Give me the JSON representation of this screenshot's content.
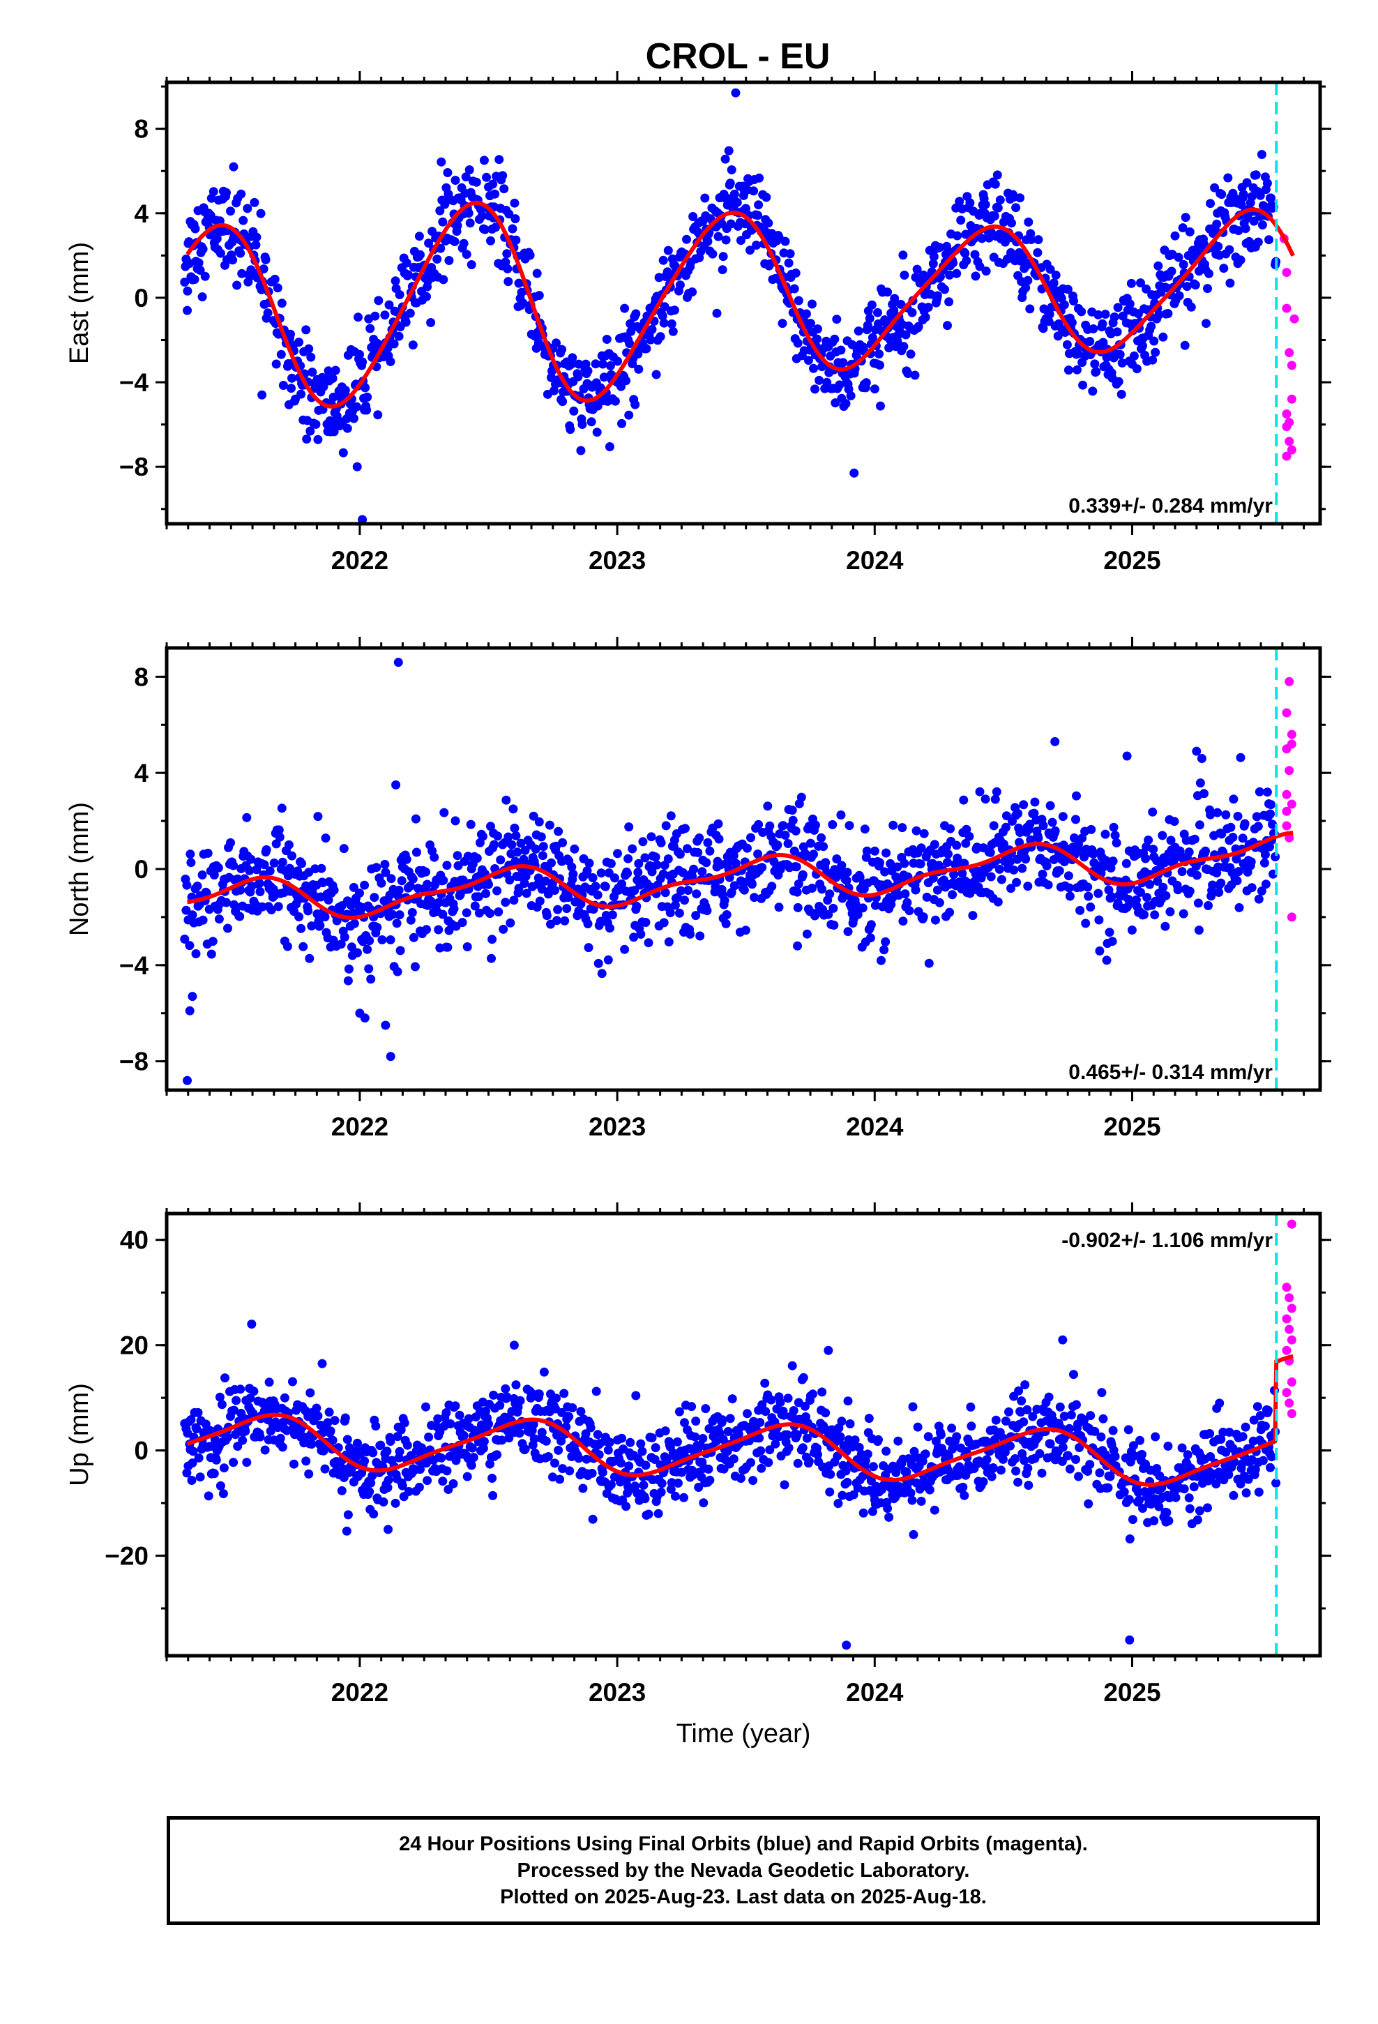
{
  "title": "CROL - EU",
  "footer": {
    "line1": "24 Hour Positions Using Final Orbits (blue) and Rapid Orbits (magenta).",
    "line2": "Processed by the Nevada Geodetic Laboratory.",
    "line3": "Plotted on 2025-Aug-23. Last data on 2025-Aug-18."
  },
  "colors": {
    "final": "#0000ff",
    "rapid": "#ff00ff",
    "fit": "#ff0000",
    "marker": "#00e5ee",
    "frame": "#000000"
  },
  "chart_data": [
    {
      "type": "scatter",
      "component": "east",
      "ylabel": "East (mm)",
      "xlabel": "",
      "xlim": [
        2021.25,
        2025.73
      ],
      "ylim": [
        -10.7,
        10.2
      ],
      "xticks": [
        2022,
        2023,
        2024,
        2025
      ],
      "yticks": [
        -8,
        -4,
        0,
        4,
        8
      ],
      "yticklabels": [
        "−8",
        "−4",
        "0",
        "4",
        "8"
      ],
      "rate_label": "0.339+/- 0.284 mm/yr",
      "rate_position": "bottom-right",
      "rapid_start": 2025.56,
      "fit": {
        "mean": 0,
        "trend": 0.339,
        "amp": 4.0,
        "amp2": 0.5,
        "phase_center": 2021.42,
        "jump": 0,
        "mod": 0.25
      },
      "scatter_sigma": 1.1,
      "outliers": [
        [
          2021.51,
          6.2
        ],
        [
          2021.62,
          -4.6
        ],
        [
          2021.99,
          -8.0
        ],
        [
          2022.01,
          -10.5
        ],
        [
          2023.46,
          9.7
        ],
        [
          2023.92,
          -8.3
        ],
        [
          2021.33,
          -0.6
        ]
      ],
      "rapid": [
        [
          2025.59,
          2.8
        ],
        [
          2025.6,
          1.2
        ],
        [
          2025.6,
          -0.5
        ],
        [
          2025.61,
          -2.6
        ],
        [
          2025.62,
          -3.2
        ],
        [
          2025.6,
          -5.5
        ],
        [
          2025.6,
          -6.1
        ],
        [
          2025.61,
          -6.8
        ],
        [
          2025.62,
          -7.2
        ],
        [
          2025.6,
          -7.5
        ],
        [
          2025.61,
          -5.9
        ],
        [
          2025.63,
          -1.0
        ],
        [
          2025.62,
          -4.8
        ]
      ]
    },
    {
      "type": "scatter",
      "component": "north",
      "ylabel": "North (mm)",
      "xlabel": "",
      "xlim": [
        2021.25,
        2025.73
      ],
      "ylim": [
        -9.2,
        9.2
      ],
      "xticks": [
        2022,
        2023,
        2024,
        2025
      ],
      "yticks": [
        -8,
        -4,
        0,
        4,
        8
      ],
      "yticklabels": [
        "−8",
        "−4",
        "0",
        "4",
        "8"
      ],
      "rate_label": "0.465+/- 0.314 mm/yr",
      "rate_position": "bottom-right",
      "rapid_start": 2025.56,
      "fit": {
        "mean": -0.4,
        "trend": 0.465,
        "amp": 0.8,
        "amp2": 0.3,
        "phase_center": 2021.55,
        "jump": 0,
        "mod": 0
      },
      "scatter_sigma": 1.1,
      "outliers": [
        [
          2021.33,
          -8.8
        ],
        [
          2021.34,
          -5.9
        ],
        [
          2021.35,
          -5.3
        ],
        [
          2022.15,
          8.6
        ],
        [
          2022.14,
          3.5
        ],
        [
          2022.12,
          -7.8
        ],
        [
          2022.1,
          -6.5
        ],
        [
          2022.02,
          -6.2
        ],
        [
          2022.0,
          -6.0
        ],
        [
          2024.7,
          5.3
        ],
        [
          2024.98,
          4.7
        ],
        [
          2025.25,
          4.9
        ],
        [
          2023.7,
          -3.2
        ]
      ],
      "rapid": [
        [
          2025.61,
          7.8
        ],
        [
          2025.6,
          6.5
        ],
        [
          2025.62,
          5.6
        ],
        [
          2025.6,
          5.0
        ],
        [
          2025.61,
          4.1
        ],
        [
          2025.6,
          3.1
        ],
        [
          2025.62,
          2.7
        ],
        [
          2025.6,
          1.8
        ],
        [
          2025.61,
          1.3
        ],
        [
          2025.62,
          -2.0
        ],
        [
          2025.6,
          2.4
        ],
        [
          2025.62,
          5.2
        ]
      ]
    },
    {
      "type": "scatter",
      "component": "up",
      "ylabel": "Up (mm)",
      "xlabel": "Time (year)",
      "xlim": [
        2021.25,
        2025.73
      ],
      "ylim": [
        -39,
        45
      ],
      "xticks": [
        2022,
        2023,
        2024,
        2025
      ],
      "yticks": [
        -20,
        0,
        20,
        40
      ],
      "yticklabels": [
        "−20",
        "0",
        "20",
        "40"
      ],
      "rate_label": "-0.902+/- 1.106 mm/yr",
      "rate_position": "top-right",
      "rapid_start": 2025.56,
      "fit": {
        "mean": 0,
        "trend": -0.902,
        "amp": 5.0,
        "amp2": 1.0,
        "phase_center": 2021.62,
        "jump": 15,
        "mod": 0
      },
      "scatter_sigma": 4.0,
      "outliers": [
        [
          2021.58,
          24
        ],
        [
          2022.6,
          20
        ],
        [
          2023.89,
          -37
        ],
        [
          2024.99,
          -36
        ],
        [
          2024.73,
          21
        ],
        [
          2023.82,
          19
        ],
        [
          2022.11,
          -15
        ]
      ],
      "rapid": [
        [
          2025.62,
          43
        ],
        [
          2025.6,
          31
        ],
        [
          2025.61,
          29
        ],
        [
          2025.62,
          27
        ],
        [
          2025.6,
          25
        ],
        [
          2025.61,
          23
        ],
        [
          2025.62,
          21
        ],
        [
          2025.6,
          19
        ],
        [
          2025.61,
          17
        ],
        [
          2025.62,
          13
        ],
        [
          2025.6,
          11
        ],
        [
          2025.62,
          7
        ],
        [
          2025.61,
          9
        ]
      ]
    }
  ]
}
